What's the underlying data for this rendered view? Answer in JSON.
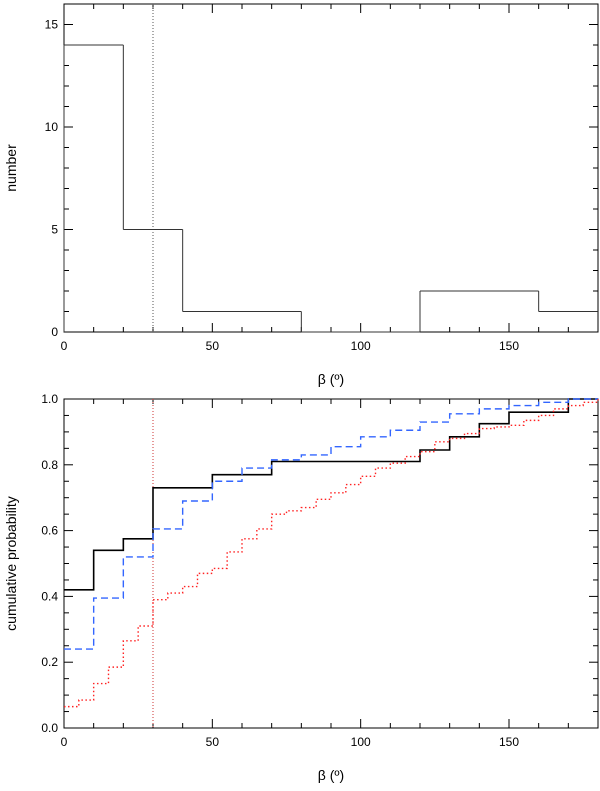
{
  "chart_data": [
    {
      "type": "histogram",
      "xlabel": "β (º)",
      "ylabel": "number",
      "xlim": [
        0,
        180
      ],
      "ylim": [
        0,
        16
      ],
      "xticks": [
        0,
        50,
        100,
        150
      ],
      "yticks": [
        0,
        5,
        10,
        15
      ],
      "reference_line_x": 30,
      "bin_edges": [
        0,
        20,
        40,
        80,
        120,
        160,
        180
      ],
      "counts": [
        14,
        5,
        1,
        0,
        2,
        1
      ],
      "line_color": "#333333"
    },
    {
      "type": "step",
      "xlabel": "β (º)",
      "ylabel": "cumulative probability",
      "xlim": [
        0,
        180
      ],
      "ylim": [
        0,
        1
      ],
      "xticks": [
        0,
        50,
        100,
        150
      ],
      "yticks": [
        "0.0",
        "0.2",
        "0.4",
        "0.6",
        "0.8",
        "1.0"
      ],
      "reference_line_x": 30,
      "series": [
        {
          "name": "solid-black",
          "color": "#000000",
          "style": "solid",
          "x": [
            0,
            10,
            20,
            30,
            50,
            60,
            70,
            120,
            130,
            140,
            150,
            170,
            180
          ],
          "y": [
            0.42,
            0.54,
            0.575,
            0.73,
            0.77,
            0.77,
            0.81,
            0.845,
            0.885,
            0.925,
            0.96,
            1.0,
            1.0
          ]
        },
        {
          "name": "dashed-blue",
          "color": "#3366ff",
          "style": "dashed",
          "x": [
            0,
            10,
            20,
            25,
            30,
            40,
            50,
            60,
            70,
            80,
            90,
            100,
            110,
            120,
            130,
            140,
            150,
            160,
            170,
            180
          ],
          "y": [
            0.24,
            0.395,
            0.52,
            0.52,
            0.605,
            0.69,
            0.75,
            0.79,
            0.815,
            0.83,
            0.855,
            0.885,
            0.905,
            0.93,
            0.955,
            0.97,
            0.98,
            0.99,
            1.0,
            1.0
          ]
        },
        {
          "name": "dotted-red",
          "color": "#ff2222",
          "style": "dotted",
          "x": [
            0,
            5,
            10,
            15,
            20,
            25,
            30,
            35,
            40,
            45,
            50,
            55,
            60,
            65,
            70,
            75,
            80,
            85,
            90,
            95,
            100,
            105,
            110,
            115,
            120,
            125,
            130,
            135,
            140,
            145,
            150,
            155,
            160,
            165,
            170,
            175,
            180
          ],
          "y": [
            0.065,
            0.085,
            0.135,
            0.185,
            0.265,
            0.31,
            0.39,
            0.41,
            0.43,
            0.47,
            0.485,
            0.535,
            0.575,
            0.605,
            0.65,
            0.66,
            0.67,
            0.695,
            0.715,
            0.74,
            0.765,
            0.79,
            0.805,
            0.825,
            0.84,
            0.87,
            0.88,
            0.895,
            0.91,
            0.915,
            0.92,
            0.935,
            0.95,
            0.97,
            0.98,
            0.99,
            1.0
          ]
        }
      ]
    }
  ]
}
